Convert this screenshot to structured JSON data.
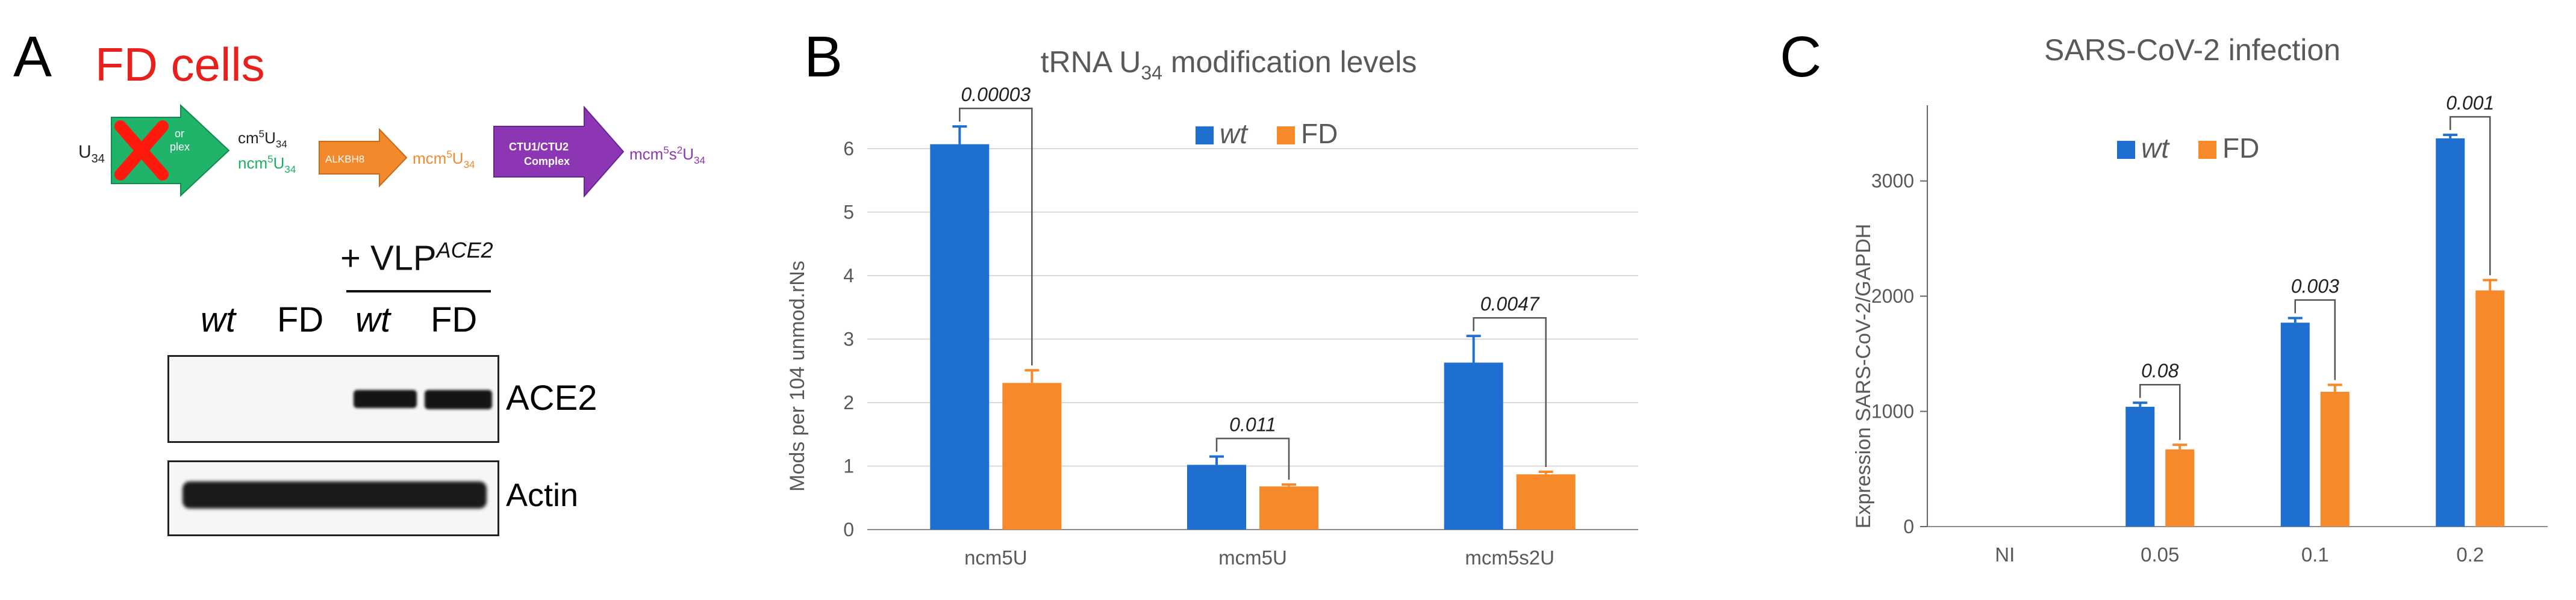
{
  "colors": {
    "wt": "#1f6fd1",
    "fd": "#f68a2b",
    "fd_label": "#e8201c",
    "green": "#1fb46a",
    "purple": "#8c36b4",
    "orange_enzyme": "#f2892d"
  },
  "panelA": {
    "letter": "A",
    "title": "FD cells",
    "pathway": {
      "start": "U",
      "start_sub": "34",
      "elongator_text_1": "or",
      "elongator_text_2": "plex",
      "inter_1": "cm",
      "inter_1_sup": "5",
      "inter_1_sub": "34",
      "inter_2": "ncm",
      "inter_2_sup": "5",
      "inter_2_sub": "34",
      "enzyme_1": "ALKBH8",
      "product_1": "mcm",
      "product_1_sup": "5",
      "product_1_sub": "34",
      "enzyme_2_line1": "CTU1/CTU2",
      "enzyme_2_line2": "Complex",
      "product_2": "mcm",
      "product_2_sup1": "5",
      "product_2_mid": "s",
      "product_2_sup2": "2",
      "product_2_sub": "34",
      "base_letter": "U"
    },
    "blot": {
      "treatment": "+ VLP",
      "treatment_sup": "ACE2",
      "lanes": [
        "wt",
        "FD",
        "wt",
        "FD"
      ],
      "rows": [
        "ACE2",
        "Actin"
      ]
    }
  },
  "panelB": {
    "letter": "B"
  },
  "panelC": {
    "letter": "C"
  },
  "chart_data": [
    {
      "type": "bar",
      "title": "tRNA U34 modification levels",
      "title_main": "tRNA U",
      "title_sub": "34",
      "title_rest": " modification levels",
      "ylabel": "Mods per 104 unmod.rNs",
      "xlabel": "",
      "ylim": [
        0,
        6
      ],
      "yticks": [
        "0",
        "1",
        "2",
        "3",
        "4",
        "5",
        "6"
      ],
      "grid": true,
      "legend": "top-center",
      "categories": [
        "ncm5U",
        "mcm5U",
        "mcm5s2U"
      ],
      "series": [
        {
          "name": "wt",
          "values": [
            6.07,
            1.02,
            2.63
          ],
          "errors": [
            0.28,
            0.13,
            0.42
          ]
        },
        {
          "name": "FD",
          "values": [
            2.31,
            0.68,
            0.87
          ],
          "errors": [
            0.2,
            0.03,
            0.04
          ]
        }
      ],
      "pvalues": [
        "0.00003",
        "0.011",
        "0.0047"
      ]
    },
    {
      "type": "bar",
      "title": "SARS-CoV-2 infection",
      "ylabel": "Expression SARS-CoV-2/GAPDH",
      "xlabel": "",
      "ylim": [
        0,
        3500
      ],
      "yticks": [
        "0",
        "1000",
        "2000",
        "3000"
      ],
      "grid": false,
      "legend": "top-center",
      "categories": [
        "NI",
        "0.05",
        "0.1",
        "0.2"
      ],
      "series": [
        {
          "name": "wt",
          "values": [
            0,
            1040,
            1770,
            3370
          ],
          "errors": [
            0,
            35,
            40,
            30
          ]
        },
        {
          "name": "FD",
          "values": [
            0,
            670,
            1170,
            2050
          ],
          "errors": [
            0,
            40,
            60,
            90
          ]
        }
      ],
      "pvalues": [
        "",
        "0.08",
        "0.003",
        "0.001"
      ]
    }
  ]
}
